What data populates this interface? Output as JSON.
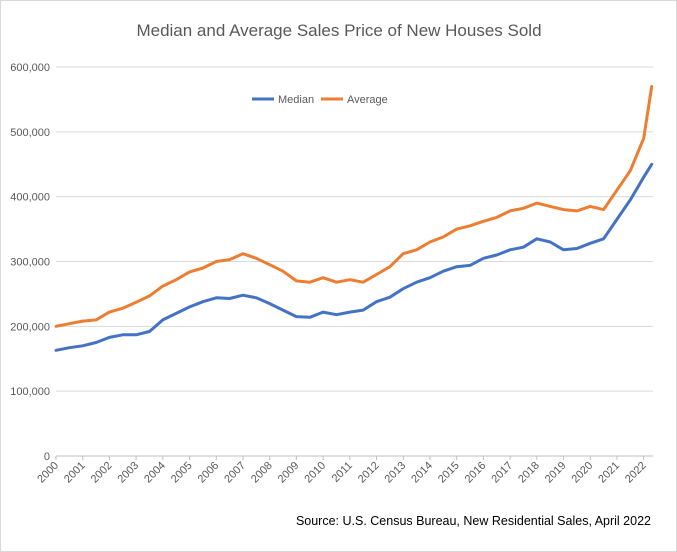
{
  "chart_data": {
    "type": "line",
    "title": "Median and Average Sales Price of New Houses Sold",
    "xlabel": "",
    "ylabel": "",
    "xlim": [
      2000,
      2022.35
    ],
    "ylim": [
      0,
      600000
    ],
    "y_ticks": [
      0,
      100000,
      200000,
      300000,
      400000,
      500000,
      600000
    ],
    "y_tick_labels": [
      "0",
      "100,000",
      "200,000",
      "300,000",
      "400,000",
      "500,000",
      "600,000"
    ],
    "x_tick_labels": [
      "2000",
      "2001",
      "2002",
      "2003",
      "2004",
      "2005",
      "2006",
      "2007",
      "2008",
      "2009",
      "2010",
      "2011",
      "2012",
      "2013",
      "2014",
      "2015",
      "2016",
      "2017",
      "2018",
      "2019",
      "2020",
      "2021",
      "2022"
    ],
    "grid": true,
    "legend_position": "top-center",
    "series": [
      {
        "name": "Median",
        "color": "#4472C4",
        "x": [
          2000,
          2000.5,
          2001,
          2001.5,
          2002,
          2002.5,
          2003,
          2003.5,
          2004,
          2004.5,
          2005,
          2005.5,
          2006,
          2006.5,
          2007,
          2007.5,
          2008,
          2008.5,
          2009,
          2009.5,
          2010,
          2010.5,
          2011,
          2011.5,
          2012,
          2012.5,
          2013,
          2013.5,
          2014,
          2014.5,
          2015,
          2015.5,
          2016,
          2016.5,
          2017,
          2017.5,
          2018,
          2018.5,
          2019,
          2019.5,
          2020,
          2020.5,
          2021,
          2021.5,
          2022,
          2022.3
        ],
        "values": [
          163000,
          167000,
          170000,
          175000,
          183000,
          187000,
          187000,
          192000,
          210000,
          220000,
          230000,
          238000,
          244000,
          243000,
          248000,
          244000,
          235000,
          225000,
          215000,
          214000,
          222000,
          218000,
          222000,
          225000,
          238000,
          245000,
          258000,
          268000,
          275000,
          285000,
          292000,
          294000,
          305000,
          310000,
          318000,
          322000,
          335000,
          330000,
          318000,
          320000,
          328000,
          335000,
          365000,
          395000,
          430000,
          450000
        ]
      },
      {
        "name": "Average",
        "color": "#ED7D31",
        "x": [
          2000,
          2000.5,
          2001,
          2001.5,
          2002,
          2002.5,
          2003,
          2003.5,
          2004,
          2004.5,
          2005,
          2005.5,
          2006,
          2006.5,
          2007,
          2007.5,
          2008,
          2008.5,
          2009,
          2009.5,
          2010,
          2010.5,
          2011,
          2011.5,
          2012,
          2012.5,
          2013,
          2013.5,
          2014,
          2014.5,
          2015,
          2015.5,
          2016,
          2016.5,
          2017,
          2017.5,
          2018,
          2018.5,
          2019,
          2019.5,
          2020,
          2020.5,
          2021,
          2021.5,
          2022,
          2022.3
        ],
        "values": [
          200000,
          204000,
          208000,
          210000,
          222000,
          228000,
          237000,
          247000,
          262000,
          272000,
          284000,
          290000,
          300000,
          303000,
          312000,
          305000,
          295000,
          285000,
          270000,
          268000,
          275000,
          268000,
          272000,
          268000,
          280000,
          292000,
          312000,
          318000,
          330000,
          338000,
          350000,
          355000,
          362000,
          368000,
          378000,
          382000,
          390000,
          385000,
          380000,
          378000,
          385000,
          380000,
          410000,
          440000,
          490000,
          570000
        ]
      }
    ],
    "source_note": "Source: U.S. Census Bureau, New Residential Sales, April 2022"
  }
}
